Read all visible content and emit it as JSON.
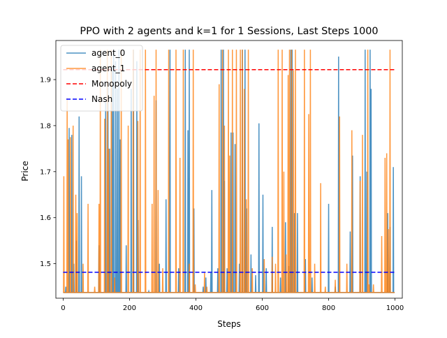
{
  "chart_data": {
    "type": "line",
    "title": "PPO with 2 agents and k=1 for 1 Sessions, Last Steps 1000",
    "xlabel": "Steps",
    "ylabel": "Price",
    "xlim": [
      -22,
      1022
    ],
    "ylim": [
      1.425,
      1.985
    ],
    "xticks": [
      0,
      200,
      400,
      600,
      800,
      1000
    ],
    "yticks": [
      1.5,
      1.6,
      1.7,
      1.8,
      1.9
    ],
    "xtick_labels": [
      "0",
      "200",
      "400",
      "600",
      "800",
      "1000"
    ],
    "ytick_labels": [
      "1.5",
      "1.6",
      "1.7",
      "1.8",
      "1.9"
    ],
    "legend_position": "top-left",
    "baseline": 1.4373,
    "series": [
      {
        "name": "agent_0",
        "color": "#1f77b4",
        "style": "solid",
        "spikes": [
          [
            8,
            1.45
          ],
          [
            18,
            1.795
          ],
          [
            26,
            1.78
          ],
          [
            32,
            1.5
          ],
          [
            40,
            1.55
          ],
          [
            48,
            1.82
          ],
          [
            55,
            1.69
          ],
          [
            108,
            1.54
          ],
          [
            128,
            1.85
          ],
          [
            135,
            1.89
          ],
          [
            140,
            1.75
          ],
          [
            148,
            1.93
          ],
          [
            152,
            1.965
          ],
          [
            158,
            1.94
          ],
          [
            163,
            1.88
          ],
          [
            168,
            1.965
          ],
          [
            172,
            1.77
          ],
          [
            190,
            1.54
          ],
          [
            205,
            1.88
          ],
          [
            212,
            1.965
          ],
          [
            222,
            1.94
          ],
          [
            226,
            1.595
          ],
          [
            258,
            1.44
          ],
          [
            280,
            1.855
          ],
          [
            290,
            1.5
          ],
          [
            310,
            1.64
          ],
          [
            322,
            1.965
          ],
          [
            348,
            1.49
          ],
          [
            368,
            1.965
          ],
          [
            376,
            1.79
          ],
          [
            380,
            1.965
          ],
          [
            394,
            1.62
          ],
          [
            422,
            1.45
          ],
          [
            430,
            1.47
          ],
          [
            445,
            1.48
          ],
          [
            448,
            1.66
          ],
          [
            466,
            1.49
          ],
          [
            476,
            1.965
          ],
          [
            483,
            1.965
          ],
          [
            486,
            1.68
          ],
          [
            494,
            1.49
          ],
          [
            506,
            1.785
          ],
          [
            512,
            1.785
          ],
          [
            518,
            1.76
          ],
          [
            531,
            1.5
          ],
          [
            540,
            1.965
          ],
          [
            548,
            1.965
          ],
          [
            553,
            1.62
          ],
          [
            566,
            1.52
          ],
          [
            580,
            1.475
          ],
          [
            590,
            1.805
          ],
          [
            602,
            1.65
          ],
          [
            612,
            1.49
          ],
          [
            630,
            1.58
          ],
          [
            655,
            1.47
          ],
          [
            670,
            1.59
          ],
          [
            680,
            1.495
          ],
          [
            686,
            1.965
          ],
          [
            690,
            1.965
          ],
          [
            697,
            1.61
          ],
          [
            706,
            1.61
          ],
          [
            730,
            1.51
          ],
          [
            750,
            1.47
          ],
          [
            800,
            1.63
          ],
          [
            820,
            1.45
          ],
          [
            830,
            1.95
          ],
          [
            865,
            1.57
          ],
          [
            872,
            1.735
          ],
          [
            895,
            1.69
          ],
          [
            910,
            1.965
          ],
          [
            915,
            1.7
          ],
          [
            925,
            1.965
          ],
          [
            928,
            1.88
          ],
          [
            978,
            1.61
          ],
          [
            985,
            1.58
          ],
          [
            995,
            1.71
          ]
        ]
      },
      {
        "name": "agent_1",
        "color": "#ff7f0e",
        "style": "solid",
        "spikes": [
          [
            2,
            1.69
          ],
          [
            12,
            1.86
          ],
          [
            15,
            1.77
          ],
          [
            22,
            1.775
          ],
          [
            30,
            1.8
          ],
          [
            38,
            1.65
          ],
          [
            42,
            1.61
          ],
          [
            60,
            1.5
          ],
          [
            75,
            1.63
          ],
          [
            95,
            1.45
          ],
          [
            108,
            1.63
          ],
          [
            112,
            1.965
          ],
          [
            125,
            1.815
          ],
          [
            133,
            1.965
          ],
          [
            137,
            1.75
          ],
          [
            145,
            1.965
          ],
          [
            155,
            1.47
          ],
          [
            175,
            1.965
          ],
          [
            196,
            1.8
          ],
          [
            211,
            1.965
          ],
          [
            225,
            1.81
          ],
          [
            232,
            1.965
          ],
          [
            248,
            1.965
          ],
          [
            268,
            1.63
          ],
          [
            274,
            1.865
          ],
          [
            280,
            1.965
          ],
          [
            286,
            1.66
          ],
          [
            300,
            1.49
          ],
          [
            318,
            1.965
          ],
          [
            340,
            1.965
          ],
          [
            352,
            1.73
          ],
          [
            362,
            1.965
          ],
          [
            380,
            1.5
          ],
          [
            392,
            1.965
          ],
          [
            398,
            1.455
          ],
          [
            426,
            1.48
          ],
          [
            433,
            1.45
          ],
          [
            470,
            1.89
          ],
          [
            480,
            1.965
          ],
          [
            486,
            1.8
          ],
          [
            498,
            1.965
          ],
          [
            502,
            1.735
          ],
          [
            510,
            1.965
          ],
          [
            522,
            1.965
          ],
          [
            534,
            1.965
          ],
          [
            540,
            1.965
          ],
          [
            546,
            1.88
          ],
          [
            552,
            1.64
          ],
          [
            558,
            1.965
          ],
          [
            570,
            1.49
          ],
          [
            606,
            1.51
          ],
          [
            630,
            1.515
          ],
          [
            640,
            1.5
          ],
          [
            648,
            1.965
          ],
          [
            660,
            1.965
          ],
          [
            665,
            1.7
          ],
          [
            672,
            1.52
          ],
          [
            678,
            1.91
          ],
          [
            682,
            1.965
          ],
          [
            688,
            1.965
          ],
          [
            694,
            1.92
          ],
          [
            700,
            1.965
          ],
          [
            727,
            1.965
          ],
          [
            740,
            1.825
          ],
          [
            745,
            1.965
          ],
          [
            758,
            1.5
          ],
          [
            776,
            1.675
          ],
          [
            790,
            1.45
          ],
          [
            820,
            1.465
          ],
          [
            833,
            1.82
          ],
          [
            855,
            1.5
          ],
          [
            870,
            1.79
          ],
          [
            895,
            1.68
          ],
          [
            902,
            1.78
          ],
          [
            918,
            1.965
          ],
          [
            922,
            1.455
          ],
          [
            935,
            1.455
          ],
          [
            960,
            1.56
          ],
          [
            970,
            1.73
          ],
          [
            975,
            1.74
          ],
          [
            980,
            1.575
          ],
          [
            985,
            1.965
          ]
        ]
      },
      {
        "name": "Monopoly",
        "color": "#ff0000",
        "style": "dashed",
        "x": [
          0,
          999
        ],
        "y": [
          1.9216,
          1.9216
        ]
      },
      {
        "name": "Nash",
        "color": "#0000ff",
        "style": "dashed",
        "x": [
          0,
          999
        ],
        "y": [
          1.4814,
          1.4814
        ]
      }
    ]
  }
}
